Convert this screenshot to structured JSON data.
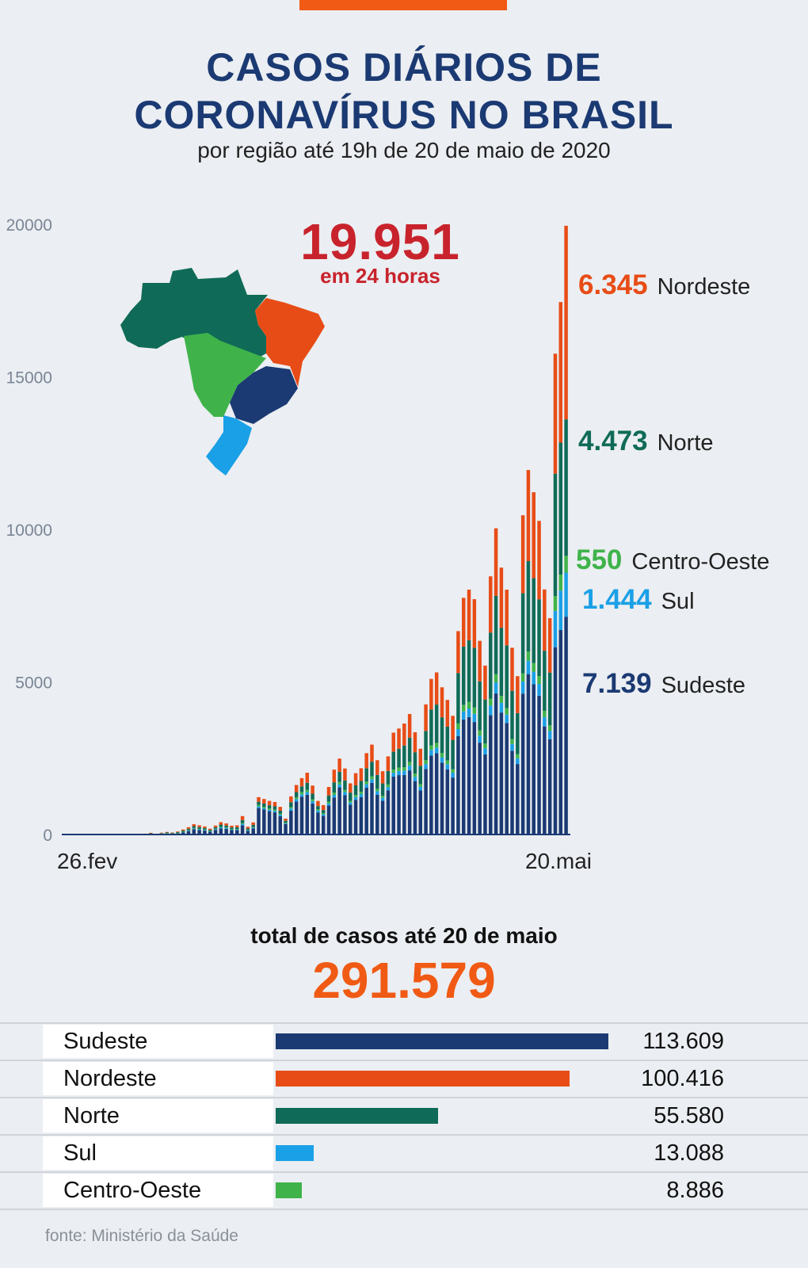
{
  "header": {
    "title_line1": "CASOS DIÁRIOS DE",
    "title_line2": "CORONAVÍRUS NO BRASIL",
    "subtitle": "por região até 19h de 20 de maio de 2020"
  },
  "highlight": {
    "value": "19.951",
    "caption": "em 24 horas"
  },
  "colors": {
    "Sudeste": "#1b3a73",
    "Nordeste": "#e84c16",
    "Norte": "#0f6b57",
    "Sul": "#1aa0e6",
    "Centro-Oeste": "#3fb34a",
    "title": "#1b3a73",
    "highlight": "#c8232c",
    "total": "#f05a14"
  },
  "latest_day": [
    {
      "region": "Nordeste",
      "value": "6.345"
    },
    {
      "region": "Norte",
      "value": "4.473"
    },
    {
      "region": "Centro-Oeste",
      "value": "550"
    },
    {
      "region": "Sul",
      "value": "1.444"
    },
    {
      "region": "Sudeste",
      "value": "7.139"
    }
  ],
  "totals": {
    "title": "total de casos até 20 de maio",
    "value": "291.579",
    "rows": [
      {
        "region": "Sudeste",
        "display": "113.609",
        "value": 113609
      },
      {
        "region": "Nordeste",
        "display": "100.416",
        "value": 100416
      },
      {
        "region": "Norte",
        "display": "55.580",
        "value": 55580
      },
      {
        "region": "Sul",
        "display": "13.088",
        "value": 13088
      },
      {
        "region": "Centro-Oeste",
        "display": "8.886",
        "value": 8886
      }
    ]
  },
  "source": "fonte: Ministério da Saúde",
  "chart_data": {
    "type": "bar",
    "stacked": true,
    "title": "CASOS DIÁRIOS DE CORONAVÍRUS NO BRASIL",
    "subtitle": "por região até 19h de 20 de maio de 2020",
    "ylim": [
      0,
      20000
    ],
    "yticks": [
      0,
      5000,
      10000,
      15000,
      20000
    ],
    "x_tick_labels": [
      "26.fev",
      "20.mai"
    ],
    "grid": false,
    "series_order": [
      "Sudeste",
      "Sul",
      "Centro-Oeste",
      "Norte",
      "Nordeste"
    ],
    "series": [
      {
        "name": "Sudeste",
        "values": [
          1,
          0,
          0,
          0,
          0,
          0,
          2,
          0,
          1,
          0,
          3,
          3,
          3,
          3,
          0,
          8,
          20,
          9,
          25,
          33,
          26,
          41,
          70,
          111,
          176,
          147,
          128,
          89,
          152,
          202,
          181,
          143,
          146,
          303,
          116,
          202,
          868,
          820,
          764,
          726,
          602,
          347,
          779,
          1079,
          1239,
          1303,
          1017,
          723,
          608,
          947,
          1210,
          1544,
          1286,
          975,
          1138,
          1224,
          1534,
          1692,
          1305,
          1106,
          1447,
          1898,
          1946,
          1950,
          2101,
          1749,
          1441,
          2150,
          2588,
          2662,
          2357,
          2137,
          1867,
          3221,
          3769,
          3849,
          3686,
          3010,
          2625,
          3912,
          4622,
          3997,
          3656,
          2745,
          2310,
          4617,
          5257,
          4923,
          4549,
          3542,
          3125,
          6138,
          6702,
          7139
        ]
      },
      {
        "name": "Sul",
        "values": [
          0,
          0,
          0,
          0,
          0,
          0,
          0,
          0,
          0,
          0,
          0,
          0,
          0,
          0,
          0,
          4,
          4,
          2,
          5,
          7,
          5,
          9,
          14,
          20,
          22,
          24,
          23,
          18,
          23,
          30,
          32,
          24,
          22,
          43,
          24,
          22,
          51,
          38,
          43,
          49,
          48,
          22,
          72,
          80,
          78,
          86,
          77,
          59,
          54,
          72,
          90,
          96,
          102,
          73,
          87,
          100,
          113,
          116,
          113,
          98,
          108,
          125,
          135,
          143,
          155,
          141,
          125,
          160,
          182,
          187,
          173,
          166,
          161,
          234,
          264,
          281,
          268,
          228,
          200,
          317,
          365,
          318,
          272,
          222,
          187,
          397,
          438,
          412,
          384,
          308,
          271,
          1192,
          1292,
          1444
        ]
      },
      {
        "name": "Centro-Oeste",
        "values": [
          0,
          0,
          0,
          0,
          0,
          0,
          0,
          0,
          0,
          0,
          0,
          0,
          0,
          0,
          0,
          2,
          3,
          1,
          3,
          4,
          3,
          4,
          8,
          13,
          17,
          13,
          13,
          9,
          13,
          17,
          17,
          14,
          14,
          22,
          11,
          16,
          51,
          45,
          44,
          41,
          35,
          22,
          48,
          63,
          75,
          75,
          61,
          42,
          39,
          56,
          75,
          84,
          73,
          57,
          67,
          73,
          89,
          98,
          79,
          65,
          85,
          108,
          111,
          114,
          122,
          103,
          86,
          125,
          150,
          153,
          138,
          123,
          109,
          186,
          217,
          221,
          214,
          175,
          153,
          226,
          267,
          230,
          211,
          158,
          135,
          264,
          304,
          284,
          261,
          204,
          181,
          484,
          526,
          550
        ]
      },
      {
        "name": "Norte",
        "values": [
          0,
          0,
          0,
          0,
          0,
          0,
          0,
          0,
          0,
          0,
          0,
          0,
          0,
          0,
          0,
          8,
          15,
          7,
          15,
          22,
          17,
          22,
          36,
          45,
          58,
          57,
          49,
          34,
          50,
          75,
          64,
          50,
          56,
          106,
          46,
          73,
          103,
          111,
          107,
          106,
          97,
          58,
          158,
          167,
          184,
          230,
          182,
          107,
          101,
          206,
          334,
          331,
          310,
          269,
          318,
          357,
          436,
          480,
          457,
          405,
          443,
          581,
          619,
          711,
          797,
          704,
          600,
          960,
          1174,
          1257,
          1172,
          1107,
          966,
          1653,
          1907,
          2016,
          1947,
          1607,
          1447,
          2163,
          2568,
          2232,
          2060,
          1585,
          1346,
          2630,
          2962,
          2782,
          2513,
          1969,
          1731,
          4013,
          4324,
          4473
        ]
      },
      {
        "name": "Nordeste",
        "values": [
          0,
          0,
          0,
          0,
          0,
          0,
          0,
          0,
          0,
          0,
          0,
          0,
          0,
          0,
          0,
          6,
          12,
          6,
          12,
          18,
          14,
          23,
          36,
          51,
          64,
          62,
          52,
          41,
          56,
          80,
          69,
          58,
          62,
          129,
          58,
          83,
          150,
          150,
          144,
          143,
          125,
          71,
          193,
          233,
          271,
          332,
          266,
          169,
          162,
          277,
          417,
          433,
          393,
          303,
          400,
          418,
          495,
          560,
          481,
          401,
          477,
          627,
          662,
          718,
          774,
          654,
          559,
          868,
          1005,
          1053,
          984,
          878,
          787,
          1371,
          1599,
          1658,
          1598,
          1327,
          1110,
          1843,
          2215,
          1970,
          1825,
          1410,
          1211,
          2555,
          2985,
          2817,
          2572,
          2009,
          1781,
          3932,
          4607,
          6345
        ]
      }
    ]
  }
}
